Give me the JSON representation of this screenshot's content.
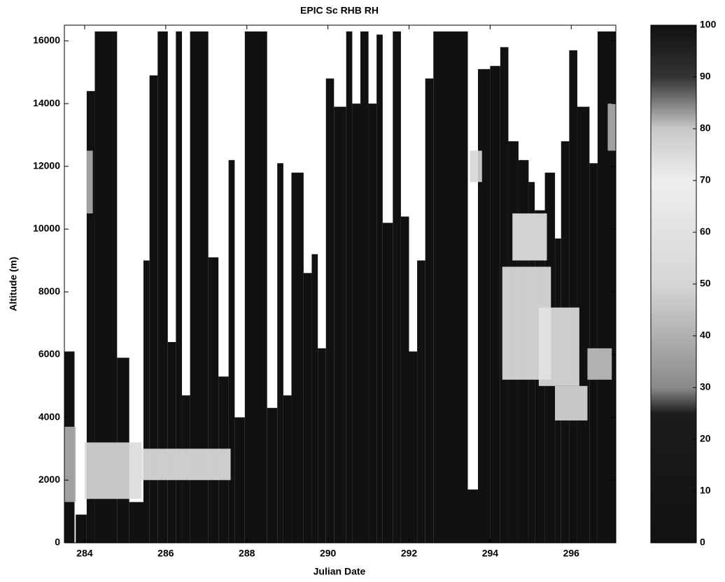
{
  "chart_data": {
    "type": "heatmap",
    "title": "EPIC Sc RHB RH",
    "xlabel": "Julian Date",
    "ylabel": "Altitude (m)",
    "xlim": [
      283.5,
      297.1
    ],
    "ylim": [
      0,
      16500
    ],
    "xticks": [
      284,
      286,
      288,
      290,
      292,
      294,
      296
    ],
    "yticks": [
      0,
      2000,
      4000,
      6000,
      8000,
      10000,
      12000,
      14000,
      16000
    ],
    "column_color": "#111111",
    "columns": [
      [
        283.5,
        283.75,
        6100
      ],
      [
        283.78,
        284.05,
        900
      ],
      [
        284.05,
        284.25,
        14400
      ],
      [
        284.25,
        284.8,
        16300
      ],
      [
        284.8,
        285.1,
        5900
      ],
      [
        285.1,
        285.45,
        1300
      ],
      [
        285.45,
        285.6,
        9000
      ],
      [
        285.6,
        285.8,
        14900
      ],
      [
        285.8,
        286.05,
        16300
      ],
      [
        286.05,
        286.25,
        6400
      ],
      [
        286.25,
        286.4,
        16300
      ],
      [
        286.4,
        286.6,
        4700
      ],
      [
        286.6,
        287.05,
        16300
      ],
      [
        287.05,
        287.3,
        9100
      ],
      [
        287.3,
        287.55,
        5300
      ],
      [
        287.55,
        287.7,
        12200
      ],
      [
        287.7,
        287.95,
        4000
      ],
      [
        287.95,
        288.5,
        16300
      ],
      [
        288.5,
        288.75,
        4300
      ],
      [
        288.75,
        288.9,
        12100
      ],
      [
        288.9,
        289.1,
        4700
      ],
      [
        289.1,
        289.4,
        11800
      ],
      [
        289.4,
        289.6,
        8600
      ],
      [
        289.6,
        289.75,
        9200
      ],
      [
        289.75,
        289.95,
        6200
      ],
      [
        289.95,
        290.15,
        14800
      ],
      [
        290.15,
        290.45,
        13900
      ],
      [
        290.45,
        290.6,
        16300
      ],
      [
        290.6,
        290.8,
        14000
      ],
      [
        290.8,
        291.0,
        16300
      ],
      [
        291.0,
        291.2,
        14000
      ],
      [
        291.2,
        291.35,
        16200
      ],
      [
        291.35,
        291.6,
        10200
      ],
      [
        291.6,
        291.8,
        16300
      ],
      [
        291.8,
        292.0,
        10400
      ],
      [
        292.0,
        292.2,
        6100
      ],
      [
        292.2,
        292.4,
        9000
      ],
      [
        292.4,
        292.6,
        14800
      ],
      [
        292.6,
        293.45,
        16300
      ],
      [
        293.45,
        293.7,
        1700
      ],
      [
        293.7,
        294.0,
        15100
      ],
      [
        294.0,
        294.25,
        15200
      ],
      [
        294.25,
        294.45,
        15800
      ],
      [
        294.45,
        294.7,
        12800
      ],
      [
        294.7,
        294.95,
        12200
      ],
      [
        294.95,
        295.1,
        11500
      ],
      [
        295.1,
        295.35,
        10600
      ],
      [
        295.35,
        295.6,
        11800
      ],
      [
        295.6,
        295.75,
        9700
      ],
      [
        295.75,
        295.95,
        12800
      ],
      [
        295.95,
        296.15,
        15700
      ],
      [
        296.15,
        296.45,
        13900
      ],
      [
        296.45,
        296.65,
        12100
      ],
      [
        296.65,
        297.1,
        16300
      ]
    ],
    "cells": [
      [
        294.55,
        295.4,
        9000,
        10500,
        65
      ],
      [
        294.3,
        295.5,
        5200,
        8800,
        60
      ],
      [
        295.2,
        296.2,
        5000,
        7500,
        60
      ],
      [
        295.6,
        296.4,
        3900,
        5000,
        55
      ],
      [
        296.4,
        297.0,
        5200,
        6200,
        45
      ],
      [
        285.3,
        287.6,
        2000,
        3000,
        60
      ],
      [
        284.0,
        285.4,
        1400,
        3200,
        55
      ],
      [
        283.5,
        283.78,
        1300,
        3700,
        40
      ],
      [
        296.9,
        297.1,
        12500,
        14000,
        40
      ],
      [
        293.5,
        293.8,
        11500,
        12500,
        50
      ],
      [
        284.05,
        284.2,
        10500,
        12500,
        40
      ]
    ],
    "colorbar": {
      "lim": [
        0,
        100
      ],
      "ticks": [
        0,
        10,
        20,
        30,
        40,
        50,
        60,
        70,
        80,
        90,
        100
      ],
      "stops": [
        [
          0,
          "#111111"
        ],
        [
          25,
          "#1c1c1c"
        ],
        [
          30,
          "#8a8a8a"
        ],
        [
          50,
          "#d6d6d6"
        ],
        [
          70,
          "#eeeeee"
        ],
        [
          80,
          "#c8c8c8"
        ],
        [
          90,
          "#333333"
        ],
        [
          100,
          "#111111"
        ]
      ]
    }
  }
}
